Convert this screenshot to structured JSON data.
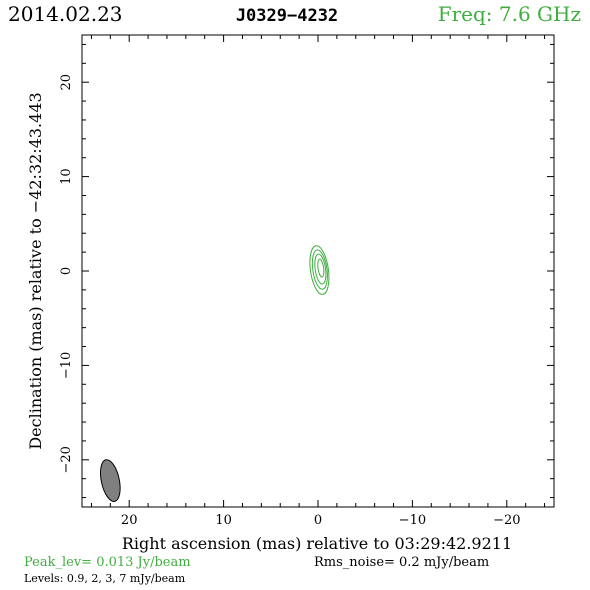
{
  "header": {
    "date": "2014.02.23",
    "source": "J0329−4232",
    "freq": "Freq: 7.6 GHz"
  },
  "footer": {
    "peak": "Peak_lev=  0.013 Jy/beam",
    "rms": "Rms_noise=  0.2 mJy/beam",
    "levels": "Levels: 0.9,   2,   3,   7 mJy/beam"
  },
  "colors": {
    "accent": "#3fae3f",
    "axis": "#000000",
    "beam_fill": "#808080"
  },
  "chart_data": {
    "type": "contour",
    "xlabel": "Right ascension (mas) relative to 03:29:42.9211",
    "ylabel": "Declination (mas) relative to −42:32:43.443",
    "xlim": [
      25,
      -25
    ],
    "ylim": [
      -25,
      25
    ],
    "x_ticks": [
      20,
      10,
      0,
      -10,
      -20
    ],
    "y_ticks": [
      20,
      10,
      0,
      -10,
      -20
    ],
    "x_tick_labels": [
      "20",
      "10",
      "0",
      "−10",
      "−20"
    ],
    "y_tick_labels": [
      "20",
      "10",
      "0",
      "−10",
      "−20"
    ],
    "levels_mJy": [
      0.9,
      2,
      3,
      7
    ],
    "contours": [
      {
        "level": 0.9,
        "cx": -0.15,
        "cy": 0.1,
        "a": 0.95,
        "b": 2.6,
        "angle_deg": -8
      },
      {
        "level": 2,
        "cx": -0.2,
        "cy": 0.15,
        "a": 0.75,
        "b": 2.1,
        "angle_deg": -8
      },
      {
        "level": 3,
        "cx": -0.25,
        "cy": 0.2,
        "a": 0.55,
        "b": 1.6,
        "angle_deg": -8
      },
      {
        "level": 7,
        "cx": -0.3,
        "cy": 0.3,
        "a": 0.3,
        "b": 0.95,
        "angle_deg": -8
      }
    ],
    "beam": {
      "cx": 22.0,
      "cy": -22.2,
      "major": 4.5,
      "minor": 1.9,
      "angle_deg": -12
    }
  }
}
